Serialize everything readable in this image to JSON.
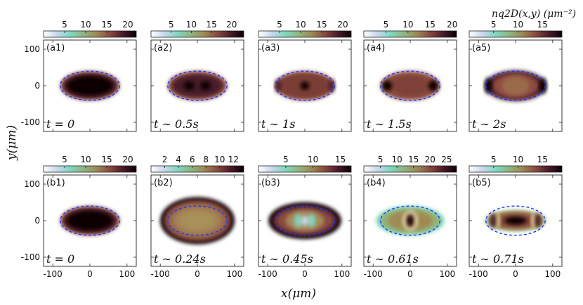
{
  "chart_data": {
    "type": "heatmap",
    "title": "n_{q2D}(x,y) (μm^-2)",
    "colorbar_title": "nq2D(x,y) (μm⁻²)",
    "xlabel": "x(μm)",
    "ylabel": "y(μm)",
    "xlim": [
      -125,
      125
    ],
    "ylim": [
      -125,
      125
    ],
    "x_ticks": [
      "-100",
      "0",
      "100"
    ],
    "y_ticks": [
      "100",
      "0",
      "-100"
    ],
    "trap_ellipse": {
      "center_x": 0,
      "center_y": 0,
      "semi_axis_x": 80,
      "semi_axis_y": 40,
      "style": "blue-dashed"
    },
    "panels": [
      {
        "id": "a1",
        "label": "(a1)",
        "time": "t = 0",
        "cb_min": 0,
        "cb_max": 22,
        "cb_ticks": [
          "5",
          "10",
          "15",
          "20"
        ]
      },
      {
        "id": "a2",
        "label": "(a2)",
        "time": "t ∼ 0.5s",
        "cb_min": 0,
        "cb_max": 23,
        "cb_ticks": [
          "5",
          "10",
          "15",
          "20"
        ]
      },
      {
        "id": "a3",
        "label": "(a3)",
        "time": "t ∼ 1s",
        "cb_min": 0,
        "cb_max": 22,
        "cb_ticks": [
          "5",
          "10",
          "15",
          "20"
        ]
      },
      {
        "id": "a4",
        "label": "(a4)",
        "time": "t ∼ 1.5s",
        "cb_min": 0,
        "cb_max": 21,
        "cb_ticks": [
          "5",
          "10",
          "15",
          "20"
        ]
      },
      {
        "id": "a5",
        "label": "(a5)",
        "time": "t ∼ 2s",
        "cb_min": 0,
        "cb_max": 19,
        "cb_ticks": [
          "5",
          "10",
          "15"
        ]
      },
      {
        "id": "b1",
        "label": "(b1)",
        "time": "t = 0",
        "cb_min": 0,
        "cb_max": 22,
        "cb_ticks": [
          "5",
          "10",
          "15",
          "20"
        ]
      },
      {
        "id": "b2",
        "label": "(b2)",
        "time": "t ∼ 0.24s",
        "cb_min": 0,
        "cb_max": 13.5,
        "cb_ticks": [
          "2",
          "4",
          "6",
          "8",
          "10",
          "12"
        ]
      },
      {
        "id": "b3",
        "label": "(b3)",
        "time": "t ∼ 0.45s",
        "cb_min": 0,
        "cb_max": 17,
        "cb_ticks": [
          "5",
          "10",
          "15"
        ]
      },
      {
        "id": "b4",
        "label": "(b4)",
        "time": "t ∼ 0.61s",
        "cb_min": 0,
        "cb_max": 28,
        "cb_ticks": [
          "5",
          "10",
          "15",
          "20",
          "25"
        ]
      },
      {
        "id": "b5",
        "label": "(b5)",
        "time": "t ∼ 0.71s",
        "cb_min": 0,
        "cb_max": 19,
        "cb_ticks": [
          "5",
          "10",
          "15"
        ]
      }
    ]
  },
  "colormap": [
    "#ffffff",
    "#c9d8ee",
    "#7ed9c1",
    "#8fb680",
    "#9e8a55",
    "#8a4a3e",
    "#4a1a2a",
    "#0a0006"
  ]
}
